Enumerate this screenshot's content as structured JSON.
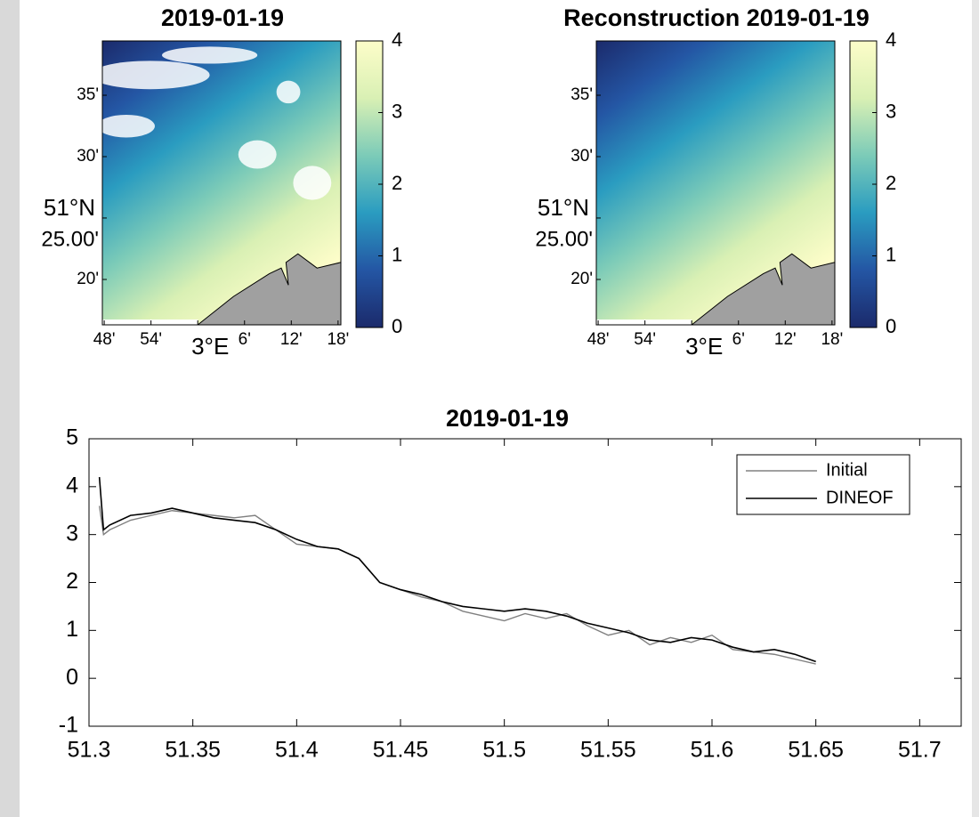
{
  "chart_data": [
    {
      "type": "map",
      "title": "2019-01-19",
      "xlim": [
        2.796,
        3.306
      ],
      "xticks": [
        {
          "value": 2.8,
          "label": "48'"
        },
        {
          "value": 2.9,
          "label": "54'"
        },
        {
          "value": 3.0,
          "label": "3°E"
        },
        {
          "value": 3.1,
          "label": "6'"
        },
        {
          "value": 3.2,
          "label": "12'"
        },
        {
          "value": 3.3,
          "label": "18'"
        }
      ],
      "ylim": [
        51.2717,
        51.657
      ],
      "yticks": [
        {
          "value": 51.3333,
          "label": "20'"
        },
        {
          "value": 51.4167,
          "label": "25.00'"
        },
        {
          "value": 51.5,
          "label": "30'"
        },
        {
          "value": 51.5833,
          "label": "35'"
        }
      ],
      "lat_label": "51°N",
      "clim": [
        0,
        4
      ],
      "cticks": [
        0,
        1,
        2,
        3,
        4
      ],
      "colormap": [
        "#1b2a6b",
        "#2456a4",
        "#2a9cc0",
        "#7ccbb8",
        "#d9f0b4",
        "#fdfdc9"
      ]
    },
    {
      "type": "map",
      "title": "Reconstruction 2019-01-19",
      "xlim": [
        2.796,
        3.306
      ],
      "xticks": [
        {
          "value": 2.8,
          "label": "48'"
        },
        {
          "value": 2.9,
          "label": "54'"
        },
        {
          "value": 3.0,
          "label": "3°E"
        },
        {
          "value": 3.1,
          "label": "6'"
        },
        {
          "value": 3.2,
          "label": "12'"
        },
        {
          "value": 3.3,
          "label": "18'"
        }
      ],
      "ylim": [
        51.2717,
        51.657
      ],
      "yticks": [
        {
          "value": 51.3333,
          "label": "20'"
        },
        {
          "value": 51.4167,
          "label": "25.00'"
        },
        {
          "value": 51.5,
          "label": "30'"
        },
        {
          "value": 51.5833,
          "label": "35'"
        }
      ],
      "lat_label": "51°N",
      "clim": [
        0,
        4
      ],
      "cticks": [
        0,
        1,
        2,
        3,
        4
      ],
      "colormap": [
        "#1b2a6b",
        "#2456a4",
        "#2a9cc0",
        "#7ccbb8",
        "#d9f0b4",
        "#fdfdc9"
      ]
    },
    {
      "type": "line",
      "title": "2019-01-19",
      "x": [
        51.305,
        51.307,
        51.31,
        51.32,
        51.33,
        51.34,
        51.35,
        51.36,
        51.37,
        51.38,
        51.39,
        51.4,
        51.41,
        51.42,
        51.43,
        51.44,
        51.45,
        51.46,
        51.47,
        51.48,
        51.49,
        51.5,
        51.51,
        51.52,
        51.53,
        51.54,
        51.55,
        51.56,
        51.57,
        51.58,
        51.59,
        51.6,
        51.61,
        51.62,
        51.63,
        51.64,
        51.65
      ],
      "series": [
        {
          "name": "Initial",
          "color": "#808080",
          "values": [
            3.6,
            3.0,
            3.1,
            3.3,
            3.4,
            3.5,
            3.45,
            3.4,
            3.35,
            3.4,
            3.1,
            2.8,
            2.75,
            2.7,
            2.5,
            2.0,
            1.85,
            1.7,
            1.6,
            1.4,
            1.3,
            1.2,
            1.35,
            1.25,
            1.35,
            1.1,
            0.9,
            1.0,
            0.7,
            0.85,
            0.75,
            0.9,
            0.6,
            0.55,
            0.5,
            0.4,
            0.3
          ]
        },
        {
          "name": "DINEOF",
          "color": "#000000",
          "values": [
            4.2,
            3.1,
            3.2,
            3.4,
            3.45,
            3.55,
            3.45,
            3.35,
            3.3,
            3.25,
            3.1,
            2.9,
            2.75,
            2.7,
            2.5,
            2.0,
            1.85,
            1.75,
            1.6,
            1.5,
            1.45,
            1.4,
            1.45,
            1.4,
            1.3,
            1.15,
            1.05,
            0.95,
            0.8,
            0.75,
            0.85,
            0.8,
            0.65,
            0.55,
            0.6,
            0.5,
            0.35
          ]
        }
      ],
      "xlim": [
        51.3,
        51.72
      ],
      "xticks": [
        51.3,
        51.35,
        51.4,
        51.45,
        51.5,
        51.55,
        51.6,
        51.65,
        51.7
      ],
      "ylim": [
        -1,
        5
      ],
      "yticks": [
        -1,
        0,
        1,
        2,
        3,
        4,
        5
      ],
      "legend": "upper right"
    }
  ]
}
